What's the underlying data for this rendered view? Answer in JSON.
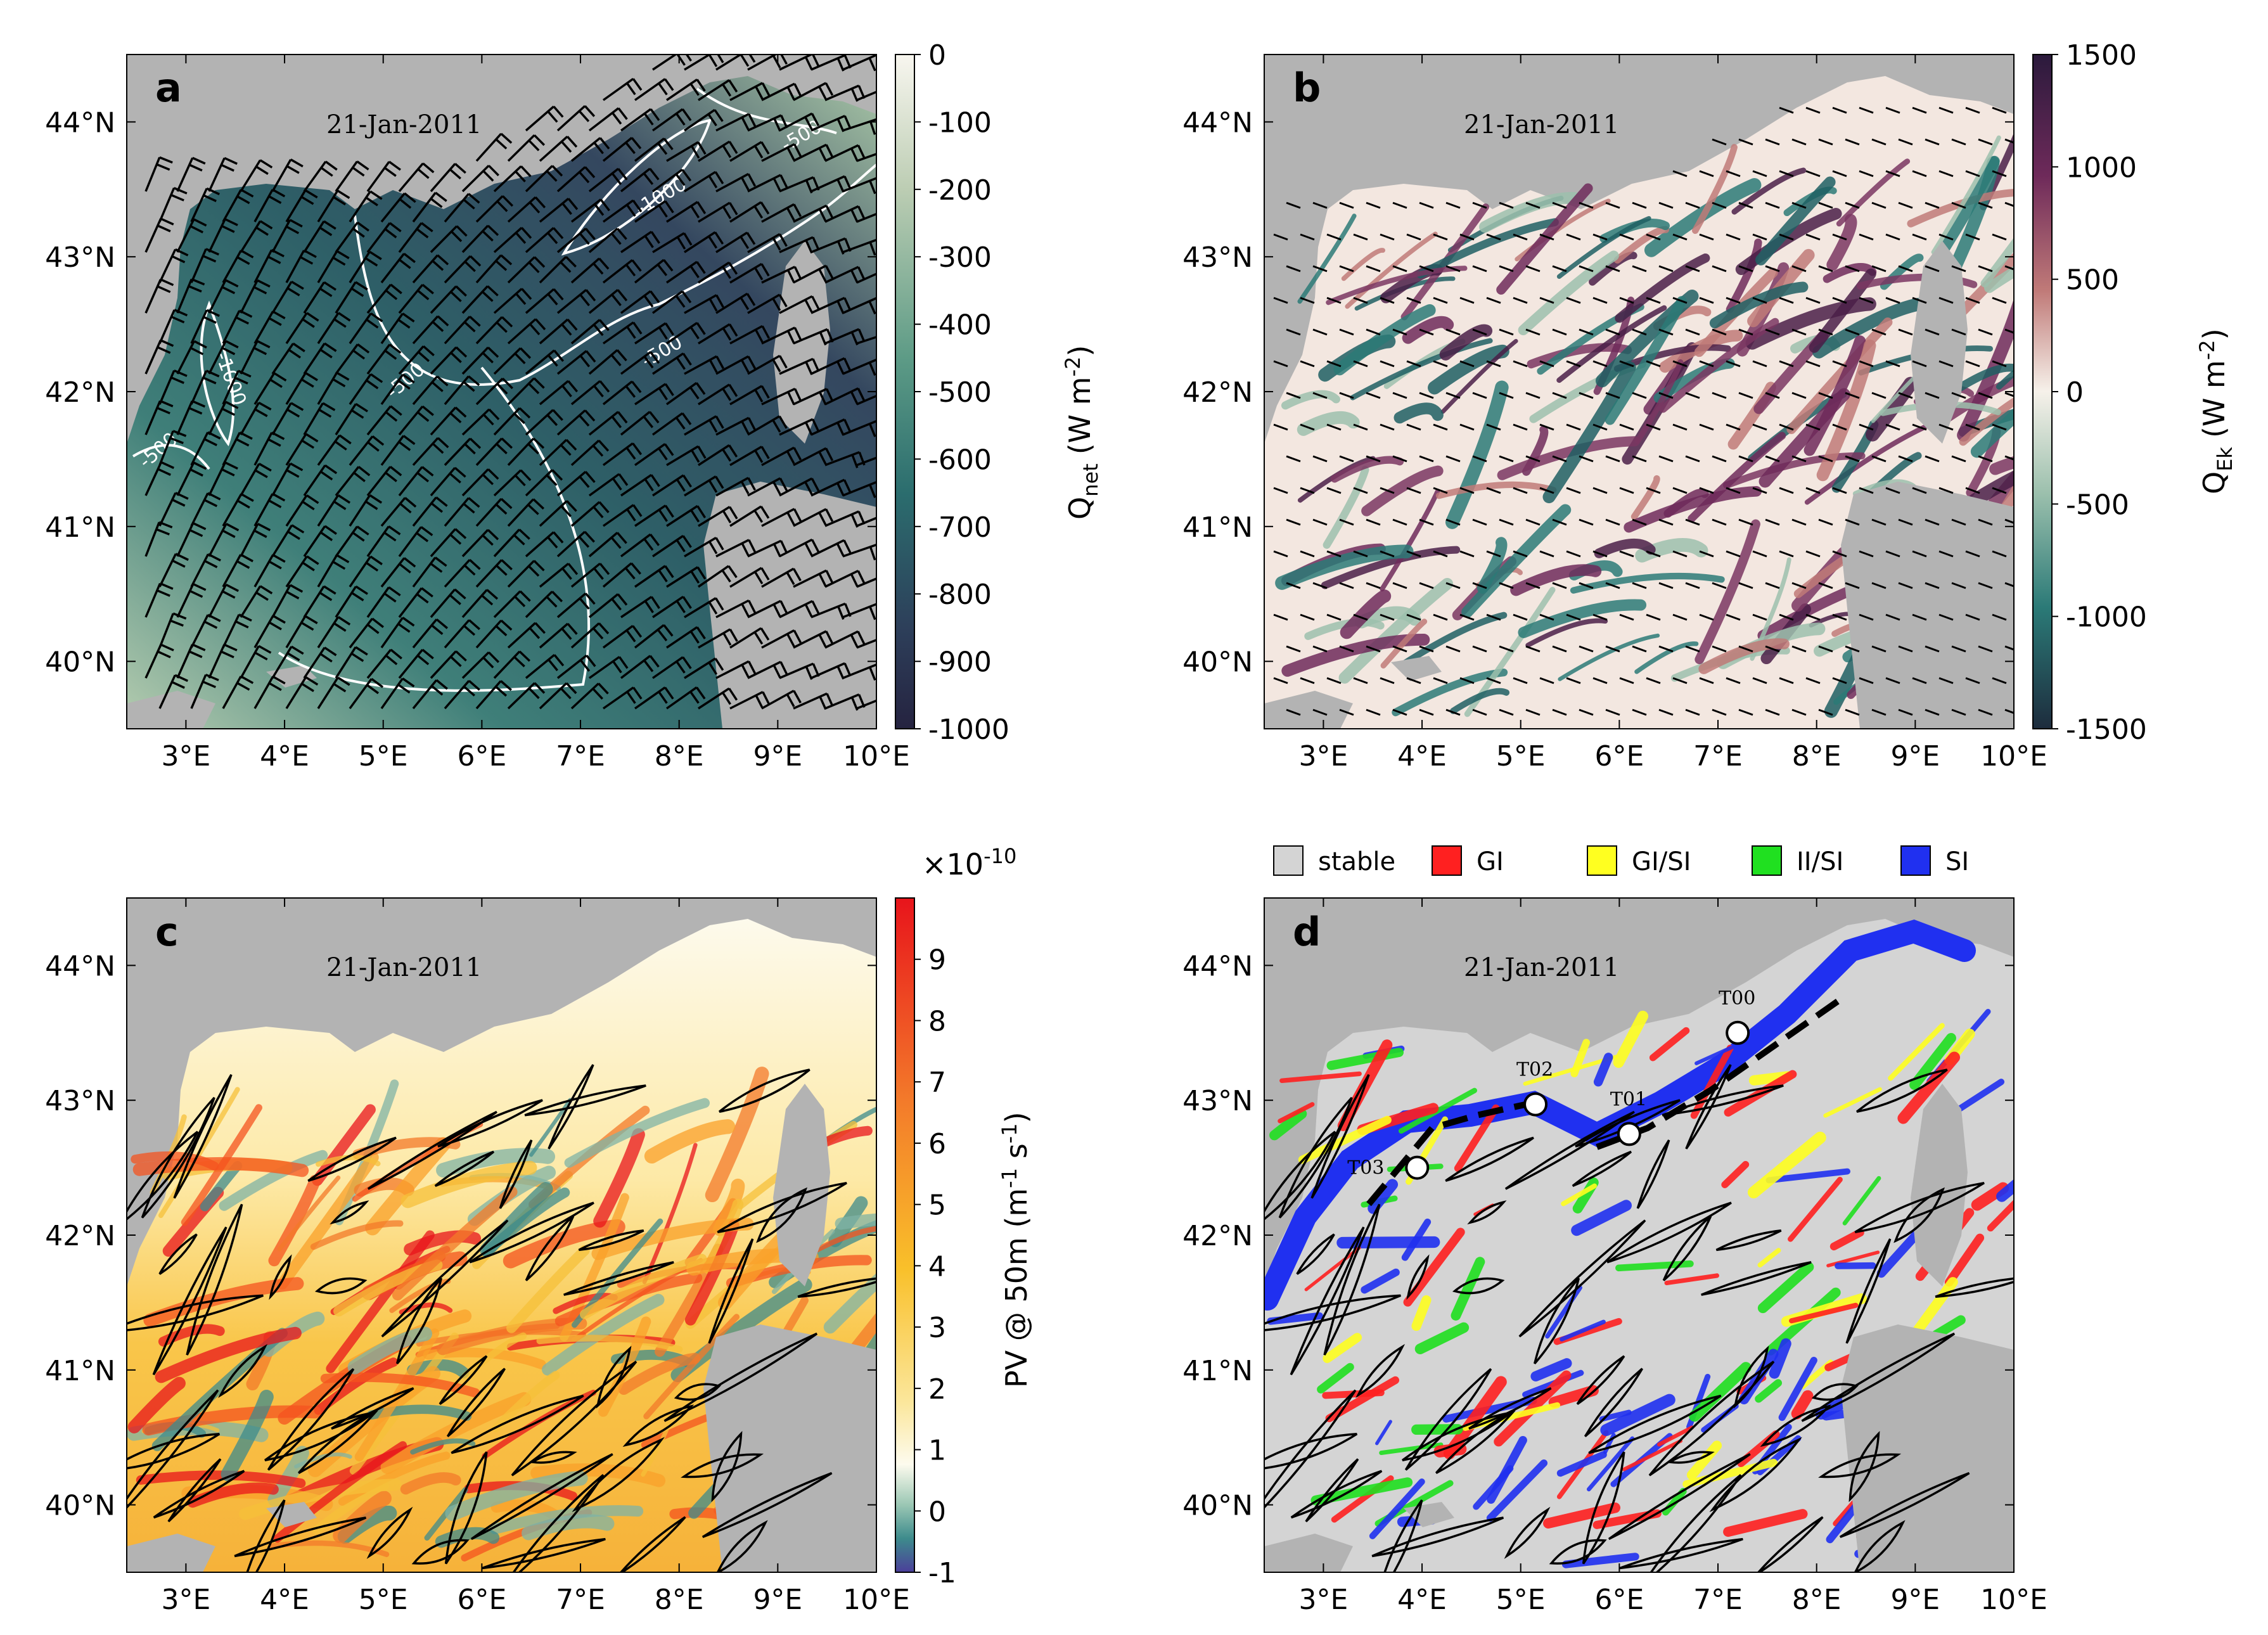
{
  "chart_data": [
    {
      "panel": "a",
      "type": "map",
      "date": "21-Jan-2011",
      "xlim": [
        2.4,
        10.0
      ],
      "ylim": [
        39.5,
        44.5
      ],
      "xticks": [
        "3°E",
        "4°E",
        "5°E",
        "6°E",
        "7°E",
        "8°E",
        "9°E",
        "10°E"
      ],
      "yticks": [
        "40°N",
        "41°N",
        "42°N",
        "43°N",
        "44°N"
      ],
      "colorbar": {
        "label_main": "Q",
        "label_sub": "net",
        "label_units": "(W m",
        "label_exp": "-2",
        "label_close": ")",
        "ticks": [
          "0",
          "-100",
          "-200",
          "-300",
          "-400",
          "-500",
          "-600",
          "-700",
          "-800",
          "-900",
          "-1000"
        ],
        "range": [
          -1000,
          0
        ]
      },
      "contour_labels": [
        "-1000",
        "-1000",
        "-500",
        "-500",
        "-500",
        "-500"
      ],
      "overlay": "wind barbs"
    },
    {
      "panel": "b",
      "type": "map",
      "date": "21-Jan-2011",
      "xlim": [
        2.4,
        10.0
      ],
      "ylim": [
        39.5,
        44.5
      ],
      "xticks": [
        "3°E",
        "4°E",
        "5°E",
        "6°E",
        "7°E",
        "8°E",
        "9°E",
        "10°E"
      ],
      "yticks": [
        "40°N",
        "41°N",
        "42°N",
        "43°N",
        "44°N"
      ],
      "colorbar": {
        "label_main": "Q",
        "label_sub": "Ek",
        "label_units": "(W m",
        "label_exp": "-2",
        "label_close": ")",
        "ticks": [
          "1500",
          "1000",
          "500",
          "0",
          "-500",
          "-1000",
          "-1500"
        ],
        "range": [
          -1500,
          1500
        ]
      },
      "overlay": "surface stress vectors"
    },
    {
      "panel": "c",
      "type": "map",
      "date": "21-Jan-2011",
      "xlim": [
        2.4,
        10.0
      ],
      "ylim": [
        39.5,
        44.5
      ],
      "xticks": [
        "3°E",
        "4°E",
        "5°E",
        "6°E",
        "7°E",
        "8°E",
        "9°E",
        "10°E"
      ],
      "yticks": [
        "40°N",
        "41°N",
        "42°N",
        "43°N",
        "44°N"
      ],
      "colorbar": {
        "label_main": "PV @ 50m (m",
        "label_exp1": "-1",
        "label_mid": " s",
        "label_exp2": "-1",
        "label_close": ")",
        "scale_base": "×10",
        "scale_exp": "-10",
        "ticks": [
          "9",
          "8",
          "7",
          "6",
          "5",
          "4",
          "3",
          "2",
          "1",
          "0",
          "-1"
        ],
        "range": [
          -1,
          10
        ]
      }
    },
    {
      "panel": "d",
      "type": "map",
      "date": "21-Jan-2011",
      "xlim": [
        2.4,
        10.0
      ],
      "ylim": [
        39.5,
        44.5
      ],
      "xticks": [
        "3°E",
        "4°E",
        "5°E",
        "6°E",
        "7°E",
        "8°E",
        "9°E",
        "10°E"
      ],
      "yticks": [
        "40°N",
        "41°N",
        "42°N",
        "43°N",
        "44°N"
      ],
      "legend": [
        {
          "label": "stable",
          "color": "#d4d4d4"
        },
        {
          "label": "GI",
          "color": "#ff2020"
        },
        {
          "label": "GI/SI",
          "color": "#ffff20"
        },
        {
          "label": "II/SI",
          "color": "#20e020"
        },
        {
          "label": "SI",
          "color": "#2030f0"
        }
      ],
      "stations": [
        {
          "name": "T00",
          "lon": 7.2,
          "lat": 43.5
        },
        {
          "name": "T01",
          "lon": 6.1,
          "lat": 42.75
        },
        {
          "name": "T02",
          "lon": 5.15,
          "lat": 42.97
        },
        {
          "name": "T03",
          "lon": 3.95,
          "lat": 42.5
        }
      ]
    }
  ],
  "colors": {
    "land": "#b3b3b3",
    "stable": "#d4d4d4"
  }
}
